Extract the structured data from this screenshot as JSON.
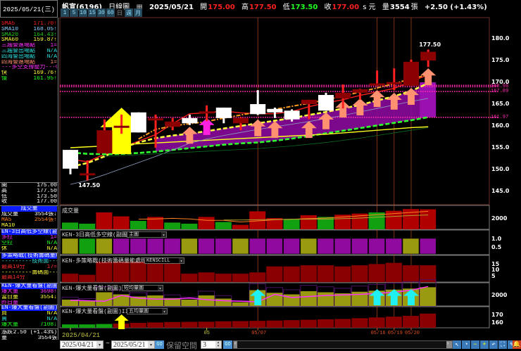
{
  "header": {
    "date": "2025/05/21(三)",
    "stock": "帆宣(6196)",
    "chart_type": "日線圖",
    "date_value": "2025/05/21",
    "open_label": "開",
    "open": "175.00",
    "high_label": "高",
    "high": "177.50",
    "low_label": "低",
    "low": "173.50",
    "close_label": "收",
    "close": "177.00",
    "unit": "s 元",
    "volume_label": "量",
    "volume": "3554",
    "volume_unit": "張",
    "change": "+2.50 (+1.43%)"
  },
  "tabs": [
    {
      "label": "1"
    },
    {
      "label": "5"
    },
    {
      "label": "10"
    },
    {
      "label": "15"
    },
    {
      "label": "30"
    },
    {
      "label": "60"
    },
    {
      "label": "日",
      "active": true
    },
    {
      "label": "週"
    },
    {
      "label": "月"
    }
  ],
  "indicators": [
    {
      "label": "SMA5",
      "value": "171.70↑",
      "color": "#ff2020"
    },
    {
      "label": "SMA10",
      "value": "168.05↑",
      "color": "#8fd0ff"
    },
    {
      "label": "SMA20",
      "value": "164.43↑",
      "color": "#20d020"
    },
    {
      "label": "SMA60",
      "value": "159.87↑",
      "color": "#ffff40"
    },
    {
      "label": "三趨警進場點",
      "value": "1=",
      "color": "#ff30ff"
    },
    {
      "label": "三趨警出場點",
      "value": "N/A",
      "color": "#30e0e0"
    },
    {
      "label": "四海警出場點",
      "value": "N/A",
      "color": "#30e0e0"
    },
    {
      "label": "四海警進場點",
      "value": "1=",
      "color": "#ff9070"
    },
    {
      "label": "---多空支撐壓力---",
      "value": "0=",
      "color": "#ff30ff"
    },
    {
      "label": "快",
      "value": "169.76↑",
      "color": "#ffff40"
    },
    {
      "label": "慢",
      "value": "161.95↑",
      "color": "#20ff20"
    }
  ],
  "ohlc": [
    {
      "label": "開",
      "value": "175.00"
    },
    {
      "label": "高",
      "value": "177.50"
    },
    {
      "label": "低",
      "value": "173.50"
    },
    {
      "label": "收",
      "value": "177.00"
    }
  ],
  "left_groups": [
    {
      "header": "成交量",
      "rows": [
        {
          "label": "成交量",
          "value": "3554張↓",
          "color": "#ffffff"
        },
        {
          "label": "MA5",
          "value": "2554張↑",
          "color": "#ff8020"
        },
        {
          "label": "MA10",
          "value": "",
          "color": "#ffff40"
        }
      ]
    },
    {
      "header": "EN-3日高低多空線(副圖",
      "rows": [
        {
          "label": "多拉",
          "value": "1=",
          "color": "#ff30ff"
        },
        {
          "label": "空拉",
          "value": "N/A",
          "color": "#20ff20"
        },
        {
          "label": "休",
          "value": "N/A",
          "color": "#ffff40"
        }
      ]
    },
    {
      "header": "多策略戰(技術籌碼量能",
      "rows": [
        {
          "label": "---------技術面---",
          "value": "...",
          "color": "#30e0e0"
        },
        {
          "label": "最高19分",
          "value": "17=",
          "color": "#ff3030"
        },
        {
          "label": "---------籌碼面---",
          "value": "...",
          "color": "#ffff40"
        },
        {
          "label": "最高14分",
          "value": "",
          "color": "#ff3030"
        }
      ]
    },
    {
      "header": "KEN-爆大量看盤(副圖)I",
      "rows": [
        {
          "label": "爆大量",
          "value": "3698↑",
          "color": "#ff30ff"
        },
        {
          "label": "當日量",
          "value": "3554↓",
          "color": "#ffff40"
        },
        {
          "label": "昨日量",
          "value": "",
          "color": "#ff30ff"
        }
      ]
    },
    {
      "header": "EN-爆大量看盤(副圖)II",
      "rows": [
        {
          "label": "買",
          "value": "N/A",
          "color": "#ffff40"
        },
        {
          "label": "賣",
          "value": "N/A",
          "color": "#30e0e0"
        },
        {
          "label": "爆大量",
          "value": "7108↓",
          "color": "#20ff20"
        }
      ]
    }
  ],
  "summary": [
    {
      "label": "漲跌",
      "value": "2.50 (+1.43%)"
    },
    {
      "label": "量",
      "value": "3554張"
    }
  ],
  "panels": {
    "volume": {
      "title": "成交量"
    },
    "three_day": {
      "title": "KEN-3日高低多空線(副圖)",
      "dropdown": "主圖"
    },
    "strategy": {
      "title": "KEN-多策略戰(技術籌碼量能處理)",
      "dropdown": "KENSCILL"
    },
    "explosive1": {
      "title": "KEN-爆大量看盤(副圖)I",
      "dropdown": "短均量圖"
    },
    "explosive3": {
      "title": "KEN-爆大量看盤(副圖)III",
      "dropdown": "五均量圖"
    }
  },
  "toolbar": {
    "start_date": "2025/04/21",
    "tilde": "~",
    "end_date": "2025/05/21",
    "go": "GO",
    "reserve_label": "保留空間",
    "reserve_value": "3",
    "go2": "GO",
    "icons": [
      "cursor-icon",
      "clock-icon",
      "zoom-out-icon",
      "zoom-in-icon",
      "undo-icon",
      "fit-icon",
      "pen-icon",
      "bell-icon"
    ]
  },
  "colors": {
    "up_candle": "#8b0000",
    "down_candle": "#ffffff",
    "wick_up": "#ff2020",
    "band": "#8a0a9a",
    "level_line": "#ff2bb0"
  },
  "chart_data": {
    "type": "candlestick",
    "ylim": [
      143,
      182
    ],
    "yticks": [
      "180.0",
      "175.0",
      "170.0",
      "165.0",
      "160.0",
      "155.0",
      "150.0",
      "145.0"
    ],
    "x_tick_labels": [
      {
        "label": "2025/04/21",
        "day": 0
      },
      {
        "label": "05",
        "day": 8
      },
      {
        "label": "05/07",
        "day": 11,
        "vline": true
      },
      {
        "label": "05/16",
        "day": 18,
        "vline": true
      },
      {
        "label": "05/19",
        "day": 19,
        "vline": true
      },
      {
        "label": "05/20",
        "day": 20,
        "vline": true
      }
    ],
    "candles": [
      [
        154.5,
        154.5,
        148.9,
        150.2
      ],
      [
        148.9,
        152.1,
        147.5,
        148.9
      ],
      [
        153.7,
        161.5,
        153.7,
        159.0
      ],
      [
        159.8,
        162.6,
        158.2,
        159.8
      ],
      [
        163.1,
        163.1,
        158.5,
        158.5
      ],
      [
        161.5,
        162.6,
        155.0,
        161.5
      ],
      [
        159.8,
        161.8,
        159.0,
        161.0
      ],
      [
        161.8,
        162.6,
        160.2,
        160.6
      ],
      [
        163.1,
        164.7,
        161.1,
        163.1
      ],
      [
        164.2,
        164.2,
        160.6,
        161.8
      ],
      [
        160.6,
        162.0,
        159.0,
        161.8
      ],
      [
        165.0,
        168.2,
        162.5,
        162.7
      ],
      [
        163.9,
        164.2,
        161.8,
        163.1
      ],
      [
        163.5,
        163.8,
        161.0,
        161.5
      ],
      [
        165.0,
        166.0,
        161.5,
        166.0
      ],
      [
        167.1,
        167.6,
        163.5,
        163.5
      ],
      [
        166.3,
        169.5,
        164.0,
        167.6
      ],
      [
        167.6,
        168.5,
        166.0,
        168.4
      ],
      [
        169.5,
        172.7,
        169.2,
        169.5
      ],
      [
        169.8,
        173.2,
        168.2,
        169.8
      ],
      [
        169.2,
        175.2,
        169.2,
        174.7
      ],
      [
        175.0,
        177.5,
        173.5,
        177.0
      ]
    ],
    "annotations": [
      {
        "text": "177.50",
        "day": 21,
        "price": 177.5
      },
      {
        "text": "147.50",
        "day": 1,
        "price": 147.5
      }
    ],
    "level_lines": [
      {
        "price": 169.3,
        "label": ""
      },
      {
        "price": 168.98,
        "label": "168.98"
      },
      {
        "price": 167.89,
        "label": "167.89"
      },
      {
        "price": 161.97,
        "label": "161.97"
      }
    ],
    "lines": [
      {
        "name": "sma5",
        "color": "#ff2020",
        "style": "solid",
        "values": [
          152.3,
          151.8,
          153.5,
          155,
          156.5,
          158,
          160.5,
          162.8,
          163,
          163.4,
          163,
          162.8,
          162.8,
          163.3,
          164.4,
          165.3,
          166,
          167,
          167.8,
          168.6,
          170.2,
          171.7
        ]
      },
      {
        "name": "fast-dashdot",
        "color": "#ff9a20",
        "style": "dashdot",
        "values": [
          null,
          null,
          null,
          null,
          157,
          159.2,
          160,
          160.5,
          161,
          161.8,
          162.5,
          163.2,
          163.8,
          164.5,
          165.2,
          166,
          166.8,
          167.8,
          168.7,
          169.7,
          170.8,
          171.7
        ]
      },
      {
        "name": "yellow-dashed",
        "color": "#ffff40",
        "style": "dashed",
        "values": [
          150.6,
          151.5,
          153,
          155,
          156.2,
          157.2,
          157.8,
          158.2,
          158.8,
          159.4,
          160,
          160.6,
          161.2,
          161.8,
          162.5,
          163.2,
          164,
          164.8,
          165.8,
          166.8,
          168,
          169.8
        ]
      },
      {
        "name": "green-dashed",
        "color": "#30ff30",
        "style": "dashed",
        "values": [
          153.9,
          153.6,
          153.5,
          153.6,
          153.8,
          154.1,
          154.5,
          154.9,
          155.3,
          155.7,
          156,
          156.2,
          156.6,
          157.1,
          157.7,
          158.3,
          158.9,
          159.5,
          160.1,
          160.7,
          161.3,
          162
        ]
      },
      {
        "name": "sma60",
        "color": "#ffff20",
        "style": "solid",
        "values": [
          155,
          155.2,
          155.4,
          155.7,
          155.9,
          156.1,
          156.3,
          156.5,
          156.7,
          156.9,
          157.1,
          157.3,
          157.5,
          157.7,
          157.9,
          158.1,
          158.4,
          158.7,
          159,
          159.3,
          159.6,
          159.8
        ]
      },
      {
        "name": "sma10",
        "color": "#8fa0c0",
        "style": "thin",
        "values": [
          146.6,
          147.5,
          148.8,
          150.2,
          151.6,
          153,
          154.5,
          156,
          157,
          157.8,
          158.5,
          159.2,
          159.8,
          160.4,
          161,
          161.7,
          162.4,
          163.2,
          164,
          164.8,
          165.6,
          166.3
        ]
      },
      {
        "name": "sma20",
        "color": "#0c6a20",
        "style": "thin",
        "values": [
          null,
          null,
          153,
          153.2,
          153.4,
          153.6,
          153.8,
          154,
          154.2,
          154.4,
          154.6,
          154.8,
          155.1,
          155.4,
          155.8,
          156.2,
          156.7,
          157.2,
          157.8,
          158.4,
          159,
          159.6
        ]
      }
    ],
    "band": {
      "from_day": 5,
      "upper": [
        157.2,
        157.8,
        158.2,
        158.8,
        159.4,
        160,
        160.6,
        161.2,
        161.8,
        162.5,
        163.2,
        164,
        164.8,
        165.8,
        166.8,
        168,
        169.8
      ],
      "lower": [
        154.1,
        154.5,
        154.9,
        155.3,
        155.7,
        156,
        156.2,
        156.6,
        157.1,
        157.7,
        158.3,
        158.9,
        159.5,
        160.1,
        160.7,
        161.3,
        162
      ]
    },
    "signal_arrows": [
      {
        "day": 3,
        "price": 164.5,
        "color": "#ffff00",
        "size": "big"
      },
      {
        "day": 7,
        "price": 159.8,
        "color": "#ff9070"
      },
      {
        "day": 8,
        "price": 161.8,
        "color": "#ff20e0"
      },
      {
        "day": 11,
        "price": 161.5,
        "color": "#ff9070"
      },
      {
        "day": 12,
        "price": 161.1,
        "color": "#ff9070"
      },
      {
        "day": 14,
        "price": 161.1,
        "color": "#ff9070"
      },
      {
        "day": 15,
        "price": 163.1,
        "color": "#ff9070"
      },
      {
        "day": 16,
        "price": 165.8,
        "color": "#ff9070"
      },
      {
        "day": 17,
        "price": 166.3,
        "color": "#ff9070"
      },
      {
        "day": 18,
        "price": 168.2,
        "color": "#ff9070"
      },
      {
        "day": 19,
        "price": 167.6,
        "color": "#ff9070"
      },
      {
        "day": 20,
        "price": 168.7,
        "color": "#ff9070"
      },
      {
        "day": 21,
        "price": 173.2,
        "color": "#ff9070"
      }
    ],
    "volume": {
      "yticks": [
        "2000"
      ],
      "values": [
        1200,
        1000,
        3000,
        2300,
        1500,
        2200,
        1200,
        1000,
        2200,
        1300,
        800,
        3200,
        2000,
        1800,
        2500,
        2200,
        2600,
        2800,
        3000,
        3300,
        3600,
        3554
      ],
      "colors": [
        "g",
        "g",
        "r",
        "r",
        "g",
        "r",
        "g",
        "g",
        "r",
        "g",
        "r",
        "r",
        "r",
        "g",
        "r",
        "g",
        "r",
        "r",
        "g",
        "r",
        "r",
        "r"
      ],
      "ma5": [
        null,
        null,
        null,
        null,
        1800,
        1850,
        1950,
        1850,
        1600,
        1600,
        1300,
        1500,
        1700,
        1800,
        1900,
        2000,
        2200,
        2400,
        2600,
        2800,
        3000,
        3200
      ],
      "ma10": [
        null,
        null,
        null,
        null,
        null,
        null,
        null,
        null,
        null,
        1650,
        1650,
        1700,
        1750,
        1800,
        1800,
        1800,
        1900,
        2000,
        2150,
        2300,
        2450,
        2554
      ]
    },
    "three_day": {
      "yticks": [
        "1.0",
        "0.5"
      ],
      "colors": [
        "O",
        "G",
        "O",
        "P",
        "P",
        "P",
        "P",
        "O",
        "P",
        "P",
        "O",
        "P",
        "P",
        "P",
        "O",
        "P",
        "P",
        "P",
        "P",
        "P",
        "O",
        "P"
      ]
    },
    "strategy": {
      "yticks": [
        "15",
        "10",
        "5"
      ],
      "values": [
        7,
        6,
        17,
        17,
        17,
        17,
        17,
        7,
        8,
        7,
        7,
        8,
        13,
        13,
        14,
        14,
        13,
        14,
        15,
        16,
        14,
        14
      ]
    },
    "explosive1": {
      "yticks": [
        "2000"
      ],
      "values": [
        1200,
        1000,
        2600,
        2200,
        1800,
        2000,
        1500,
        1200,
        2000,
        1400,
        700,
        3000,
        2500,
        2200,
        2800,
        2600,
        2400,
        2700,
        2900,
        3100,
        3300,
        3554
      ],
      "avg": [
        1100,
        1000,
        900,
        2000,
        1500,
        1300,
        1300,
        1500,
        1200,
        1000,
        900,
        800,
        2200,
        1600,
        1800,
        2000,
        2100,
        2200,
        2400,
        2600,
        3000,
        3700
      ],
      "arrow_days": [
        11,
        18,
        19,
        20
      ]
    },
    "explosive3": {
      "yticks": [
        "170",
        "160"
      ],
      "values": [
        158,
        158,
        158.5,
        159,
        160,
        160.5,
        161,
        161.2,
        161.5,
        162,
        162.3,
        162.6,
        163,
        163.5,
        164,
        164.5,
        165,
        166,
        167,
        168,
        169,
        172
      ],
      "green_days": 3,
      "arrow_day": 3
    }
  }
}
